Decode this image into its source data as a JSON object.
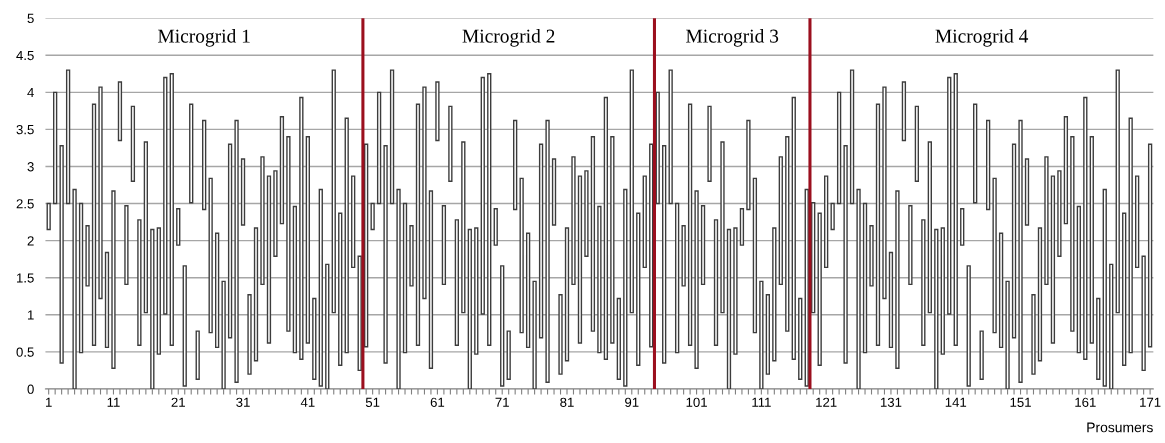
{
  "chart_data": {
    "type": "bar",
    "xlabel": "Prosumers",
    "annotations": [
      "Microgrid 1",
      "Microgrid 2",
      "Microgrid 3",
      "Microgrid 4"
    ],
    "x": [
      1,
      2,
      3,
      4,
      5,
      6,
      7,
      8,
      9,
      10,
      11,
      12,
      13,
      14,
      15,
      16,
      17,
      18,
      19,
      20,
      21,
      22,
      23,
      24,
      25,
      26,
      27,
      28,
      29,
      30,
      31,
      32,
      33,
      34,
      35,
      36,
      37,
      38,
      39,
      40,
      41,
      42,
      43,
      44,
      45,
      46,
      47,
      48,
      49,
      50,
      51,
      52,
      53,
      54,
      55,
      56,
      57,
      58,
      59,
      60,
      61,
      62,
      63,
      64,
      65,
      66,
      67,
      68,
      69,
      70,
      71,
      72,
      73,
      74,
      75,
      76,
      77,
      78,
      79,
      80,
      81,
      82,
      83,
      84,
      85,
      86,
      87,
      88,
      89,
      90,
      91,
      92,
      93,
      94,
      95,
      96,
      97,
      98,
      99,
      100,
      101,
      102,
      103,
      104,
      105,
      106,
      107,
      108,
      109,
      110,
      111,
      112,
      113,
      114,
      115,
      116,
      117,
      118,
      119,
      120,
      121,
      122,
      123,
      124,
      125,
      126,
      127,
      128,
      129,
      130,
      131,
      132,
      133,
      134,
      135,
      136,
      137,
      138,
      139,
      140,
      141,
      142,
      143,
      144,
      145,
      146,
      147,
      148,
      149,
      150,
      151,
      152,
      153,
      154,
      155,
      156,
      157,
      158,
      159,
      160,
      161,
      162,
      163,
      164,
      165,
      166,
      167,
      168,
      169,
      170,
      171
    ],
    "base": [
      2.15,
      2.5,
      0.35,
      2.5,
      0,
      0.49,
      1.39,
      0.59,
      1.22,
      0.56,
      0.28,
      3.35,
      1.41,
      2.8,
      0.59,
      1.03,
      0,
      0.47,
      1.01,
      0.59,
      1.94,
      0.04,
      2.51,
      0.13,
      2.42,
      0.76,
      0.56,
      0,
      0.69,
      0.09,
      2.21,
      0.2,
      0.38,
      1.41,
      0.62,
      1.79,
      2.23,
      0.78,
      0.49,
      0.4,
      0.62,
      0.13,
      0.04,
      0,
      1.03,
      0.32,
      0.49,
      1.64,
      0.25,
      0.57,
      2.15,
      2.5,
      0.35,
      2.5,
      0,
      0.49,
      1.39,
      0.59,
      1.22,
      0.28,
      3.35,
      1.41,
      2.8,
      0.59,
      1.03,
      0,
      0.47,
      1.01,
      0.59,
      1.94,
      0.04,
      0.13,
      2.42,
      0.76,
      0.56,
      0,
      0.69,
      0.09,
      2.21,
      0.2,
      0.38,
      1.41,
      0.62,
      1.79,
      0.78,
      0.49,
      0.4,
      0.62,
      0.13,
      0.04,
      1.03,
      0.32,
      1.64,
      0.57,
      2.5,
      0.35,
      2.5,
      0.49,
      1.39,
      0.59,
      0.28,
      1.41,
      2.8,
      0.59,
      1.03,
      0,
      0.47,
      1.94,
      2.42,
      0.76,
      0,
      0.2,
      0.38,
      1.41,
      0.78,
      0.4,
      0.13,
      0.04,
      1.03,
      0.32,
      1.64,
      2.15,
      2.5,
      0.35,
      2.5,
      0,
      0.49,
      1.39,
      0.59,
      1.22,
      0.56,
      0.28,
      3.35,
      1.41,
      2.8,
      0.59,
      1.03,
      0,
      0.47,
      1.01,
      0.59,
      1.94,
      0.04,
      2.51,
      0.13,
      2.42,
      0.76,
      0.56,
      0,
      0.69,
      0.09,
      2.21,
      0.2,
      0.38,
      1.41,
      0.62,
      1.79,
      2.23,
      0.78,
      0.49,
      0.4,
      0.62,
      0.13,
      0.04,
      0,
      1.03,
      0.32,
      0.49,
      1.64,
      0.25,
      0.57
    ],
    "values": [
      0.35,
      1.5,
      2.93,
      1.8,
      2.69,
      2.01,
      0.81,
      3.25,
      2.85,
      1.28,
      2.39,
      0.79,
      1.06,
      1.01,
      1.69,
      2.3,
      2.15,
      1.7,
      3.19,
      3.66,
      0.49,
      1.62,
      1.33,
      0.65,
      1.2,
      2.08,
      1.54,
      1.45,
      2.61,
      3.53,
      0.89,
      1.07,
      1.79,
      1.72,
      2.25,
      1.15,
      1.44,
      2.62,
      1.97,
      3.53,
      2.78,
      1.09,
      2.65,
      1.68,
      3.27,
      2.05,
      3.16,
      1.23,
      1.54,
      2.73,
      0.35,
      1.5,
      2.93,
      1.8,
      2.69,
      2.01,
      0.81,
      3.25,
      2.85,
      2.39,
      0.79,
      1.06,
      1.01,
      1.69,
      2.3,
      2.15,
      1.7,
      3.19,
      3.66,
      0.49,
      1.62,
      0.65,
      1.2,
      2.08,
      1.54,
      1.45,
      2.61,
      3.53,
      0.89,
      1.07,
      1.79,
      1.72,
      2.25,
      1.15,
      2.62,
      1.97,
      3.53,
      2.78,
      1.09,
      2.65,
      3.27,
      2.05,
      1.23,
      2.73,
      1.5,
      2.93,
      1.8,
      2.01,
      0.81,
      3.25,
      2.39,
      1.06,
      1.01,
      1.69,
      2.3,
      2.15,
      1.7,
      0.49,
      1.2,
      2.08,
      1.45,
      1.07,
      1.79,
      1.72,
      2.62,
      3.53,
      1.09,
      2.65,
      1.48,
      2.05,
      1.23,
      0.35,
      1.5,
      2.93,
      1.8,
      2.69,
      2.01,
      0.81,
      3.25,
      2.85,
      1.28,
      2.39,
      0.79,
      1.06,
      1.01,
      1.69,
      2.3,
      2.15,
      1.7,
      3.19,
      3.66,
      0.49,
      1.62,
      1.33,
      0.65,
      1.2,
      2.08,
      1.54,
      1.45,
      2.61,
      3.53,
      0.89,
      1.07,
      1.79,
      1.72,
      2.25,
      1.15,
      1.44,
      2.62,
      1.97,
      3.53,
      2.78,
      1.09,
      2.65,
      1.68,
      3.27,
      2.05,
      3.16,
      1.23,
      1.54,
      2.73
    ],
    "color": "#3c3c3c",
    "xlim": [
      0.5,
      171.5
    ],
    "xticks": [
      1,
      {
        "value": 2,
        "label": null
      },
      {
        "value": 3,
        "label": null
      },
      {
        "value": 4,
        "label": null
      },
      {
        "value": 5,
        "label": null
      },
      {
        "value": 6,
        "label": null
      },
      {
        "value": 7,
        "label": null
      },
      {
        "value": 8,
        "label": null
      },
      {
        "value": 9,
        "label": null
      },
      {
        "value": 10,
        "label": null
      },
      11,
      {
        "value": 12,
        "label": null
      },
      {
        "value": 13,
        "label": null
      },
      {
        "value": 14,
        "label": null
      },
      {
        "value": 15,
        "label": null
      },
      {
        "value": 16,
        "label": null
      },
      {
        "value": 17,
        "label": null
      },
      {
        "value": 18,
        "label": null
      },
      {
        "value": 19,
        "label": null
      },
      {
        "value": 20,
        "label": null
      },
      21,
      {
        "value": 22,
        "label": null
      },
      {
        "value": 23,
        "label": null
      },
      {
        "value": 24,
        "label": null
      },
      {
        "value": 25,
        "label": null
      },
      {
        "value": 26,
        "label": null
      },
      {
        "value": 27,
        "label": null
      },
      {
        "value": 28,
        "label": null
      },
      {
        "value": 29,
        "label": null
      },
      {
        "value": 30,
        "label": null
      },
      31,
      {
        "value": 32,
        "label": null
      },
      {
        "value": 33,
        "label": null
      },
      {
        "value": 34,
        "label": null
      },
      {
        "value": 35,
        "label": null
      },
      {
        "value": 36,
        "label": null
      },
      {
        "value": 37,
        "label": null
      },
      {
        "value": 38,
        "label": null
      },
      {
        "value": 39,
        "label": null
      },
      {
        "value": 40,
        "label": null
      },
      41,
      {
        "value": 42,
        "label": null
      },
      {
        "value": 43,
        "label": null
      },
      {
        "value": 44,
        "label": null
      },
      {
        "value": 45,
        "label": null
      },
      {
        "value": 46,
        "label": null
      },
      {
        "value": 47,
        "label": null
      },
      {
        "value": 48,
        "label": null
      },
      {
        "value": 49,
        "label": null
      },
      {
        "value": 50,
        "label": null
      },
      51,
      {
        "value": 52,
        "label": null
      },
      {
        "value": 53,
        "label": null
      },
      {
        "value": 54,
        "label": null
      },
      {
        "value": 55,
        "label": null
      },
      {
        "value": 56,
        "label": null
      },
      {
        "value": 57,
        "label": null
      },
      {
        "value": 58,
        "label": null
      },
      {
        "value": 59,
        "label": null
      },
      {
        "value": 60,
        "label": null
      },
      61,
      {
        "value": 62,
        "label": null
      },
      {
        "value": 63,
        "label": null
      },
      {
        "value": 64,
        "label": null
      },
      {
        "value": 65,
        "label": null
      },
      {
        "value": 66,
        "label": null
      },
      {
        "value": 67,
        "label": null
      },
      {
        "value": 68,
        "label": null
      },
      {
        "value": 69,
        "label": null
      },
      {
        "value": 70,
        "label": null
      },
      71,
      {
        "value": 72,
        "label": null
      },
      {
        "value": 73,
        "label": null
      },
      {
        "value": 74,
        "label": null
      },
      {
        "value": 75,
        "label": null
      },
      {
        "value": 76,
        "label": null
      },
      {
        "value": 77,
        "label": null
      },
      {
        "value": 78,
        "label": null
      },
      {
        "value": 79,
        "label": null
      },
      {
        "value": 80,
        "label": null
      },
      81,
      {
        "value": 82,
        "label": null
      },
      {
        "value": 83,
        "label": null
      },
      {
        "value": 84,
        "label": null
      },
      {
        "value": 85,
        "label": null
      },
      {
        "value": 86,
        "label": null
      },
      {
        "value": 87,
        "label": null
      },
      {
        "value": 88,
        "label": null
      },
      {
        "value": 89,
        "label": null
      },
      {
        "value": 90,
        "label": null
      },
      91,
      {
        "value": 92,
        "label": null
      },
      {
        "value": 93,
        "label": null
      },
      {
        "value": 94,
        "label": null
      },
      {
        "value": 95,
        "label": null
      },
      {
        "value": 96,
        "label": null
      },
      {
        "value": 97,
        "label": null
      },
      {
        "value": 98,
        "label": null
      },
      {
        "value": 99,
        "label": null
      },
      {
        "value": 100,
        "label": null
      },
      101,
      {
        "value": 102,
        "label": null
      },
      {
        "value": 103,
        "label": null
      },
      {
        "value": 104,
        "label": null
      },
      {
        "value": 105,
        "label": null
      },
      {
        "value": 106,
        "label": null
      },
      {
        "value": 107,
        "label": null
      },
      {
        "value": 108,
        "label": null
      },
      {
        "value": 109,
        "label": null
      },
      {
        "value": 110,
        "label": null
      },
      111,
      {
        "value": 112,
        "label": null
      },
      {
        "value": 113,
        "label": null
      },
      {
        "value": 114,
        "label": null
      },
      {
        "value": 115,
        "label": null
      },
      {
        "value": 116,
        "label": null
      },
      {
        "value": 117,
        "label": null
      },
      {
        "value": 118,
        "label": null
      },
      {
        "value": 119,
        "label": null
      },
      {
        "value": 120,
        "label": null
      },
      121,
      {
        "value": 122,
        "label": null
      },
      {
        "value": 123,
        "label": null
      },
      {
        "value": 124,
        "label": null
      },
      {
        "value": 125,
        "label": null
      },
      {
        "value": 126,
        "label": null
      },
      {
        "value": 127,
        "label": null
      },
      {
        "value": 128,
        "label": null
      },
      {
        "value": 129,
        "label": null
      },
      {
        "value": 130,
        "label": null
      },
      131,
      {
        "value": 132,
        "label": null
      },
      {
        "value": 133,
        "label": null
      },
      {
        "value": 134,
        "label": null
      },
      {
        "value": 135,
        "label": null
      },
      {
        "value": 136,
        "label": null
      },
      {
        "value": 137,
        "label": null
      },
      {
        "value": 138,
        "label": null
      },
      {
        "value": 139,
        "label": null
      },
      {
        "value": 140,
        "label": null
      },
      141,
      {
        "value": 142,
        "label": null
      },
      {
        "value": 143,
        "label": null
      },
      {
        "value": 144,
        "label": null
      },
      {
        "value": 145,
        "label": null
      },
      {
        "value": 146,
        "label": null
      },
      {
        "value": 147,
        "label": null
      },
      {
        "value": 148,
        "label": null
      },
      {
        "value": 149,
        "label": null
      },
      {
        "value": 150,
        "label": null
      },
      151,
      {
        "value": 152,
        "label": null
      },
      {
        "value": 153,
        "label": null
      },
      {
        "value": 154,
        "label": null
      },
      {
        "value": 155,
        "label": null
      },
      {
        "value": 156,
        "label": null
      },
      {
        "value": 157,
        "label": null
      },
      {
        "value": 158,
        "label": null
      },
      {
        "value": 159,
        "label": null
      },
      {
        "value": 160,
        "label": null
      },
      161,
      {
        "value": 162,
        "label": null
      },
      {
        "value": 163,
        "label": null
      },
      {
        "value": 164,
        "label": null
      },
      {
        "value": 165,
        "label": null
      },
      {
        "value": 166,
        "label": null
      },
      {
        "value": 167,
        "label": null
      },
      {
        "value": 168,
        "label": null
      },
      {
        "value": 169,
        "label": null
      },
      {
        "value": 170,
        "label": null
      },
      171
    ],
    "ylim": [
      0,
      5
    ],
    "yticks": [
      0,
      0.5,
      1,
      1.5,
      2,
      2.5,
      3,
      3.5,
      4,
      4.5,
      5
    ],
    "grid": "y",
    "ref_lines": [
      {
        "axis": "x",
        "value": 49.5,
        "color": "#9b0f1e"
      },
      {
        "axis": "x",
        "value": 94.5,
        "color": "#9b0f1e"
      },
      {
        "axis": "x",
        "value": 118.5,
        "color": "#9b0f1e"
      }
    ]
  }
}
